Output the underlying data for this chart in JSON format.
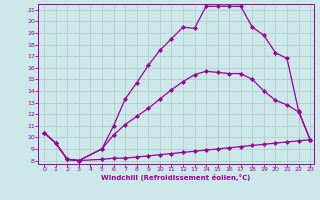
{
  "xlabel": "Windchill (Refroidissement éolien,°C)",
  "bg_color": "#cde8e8",
  "line_color": "#990099",
  "xlim": [
    -0.5,
    23.3
  ],
  "ylim": [
    7.7,
    21.5
  ],
  "xticks": [
    0,
    1,
    2,
    3,
    4,
    5,
    6,
    7,
    8,
    9,
    10,
    11,
    12,
    13,
    14,
    15,
    16,
    17,
    18,
    19,
    20,
    21,
    22,
    23
  ],
  "yticks": [
    8,
    9,
    10,
    11,
    12,
    13,
    14,
    15,
    16,
    17,
    18,
    19,
    20,
    21
  ],
  "line1_x": [
    0,
    1,
    2,
    3,
    5,
    6,
    7,
    8,
    9,
    10,
    11,
    12,
    13,
    14,
    15,
    16,
    17,
    18,
    19,
    20,
    21,
    22,
    23
  ],
  "line1_y": [
    10.4,
    9.5,
    8.1,
    8.0,
    8.1,
    8.2,
    8.2,
    8.3,
    8.4,
    8.5,
    8.6,
    8.7,
    8.8,
    8.9,
    9.0,
    9.1,
    9.2,
    9.3,
    9.4,
    9.5,
    9.6,
    9.7,
    9.8
  ],
  "line2_x": [
    0,
    1,
    2,
    3,
    5,
    6,
    7,
    8,
    9,
    10,
    11,
    12,
    13,
    14,
    15,
    16,
    17,
    18,
    19,
    20,
    21,
    22,
    23
  ],
  "line2_y": [
    10.4,
    9.5,
    8.1,
    8.0,
    9.0,
    10.2,
    11.1,
    11.8,
    12.5,
    13.3,
    14.1,
    14.8,
    15.4,
    15.7,
    15.6,
    15.5,
    15.5,
    15.0,
    14.0,
    13.2,
    12.8,
    12.2,
    9.8
  ],
  "line3_x": [
    0,
    1,
    2,
    3,
    5,
    6,
    7,
    8,
    9,
    10,
    11,
    12,
    13,
    14,
    15,
    16,
    17,
    18,
    19,
    20,
    21,
    22,
    23
  ],
  "line3_y": [
    10.4,
    9.5,
    8.1,
    8.0,
    9.0,
    11.0,
    13.3,
    14.7,
    16.2,
    17.5,
    18.5,
    19.5,
    19.4,
    21.3,
    21.3,
    21.3,
    21.3,
    19.5,
    18.8,
    17.3,
    16.8,
    12.3,
    9.8
  ],
  "grid_color": "#b0c8c8",
  "marker": "D",
  "markersize": 2.0,
  "linewidth": 0.9
}
